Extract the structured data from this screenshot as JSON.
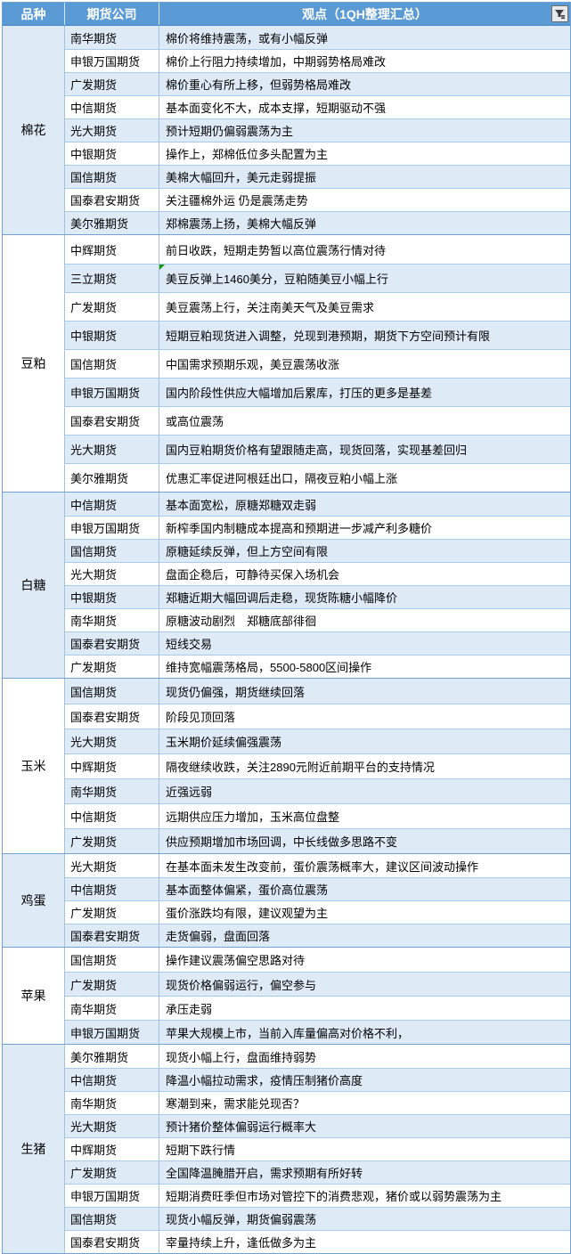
{
  "table": {
    "headers": {
      "variety": "品种",
      "company": "期货公司",
      "viewpoint": "观点（1QH整理汇总）"
    },
    "filter_icon": "autofilter-funnel-icon",
    "colors": {
      "header_bg": "#5B9BD5",
      "band_blue": "#DEEAF6",
      "band_white": "#FFFFFF",
      "grid_line": "#9DC3E6",
      "section_border": "#74A2D0",
      "corner_marker_green": "#0F9D0F"
    },
    "sections": [
      {
        "variety": "棉花",
        "rows": [
          {
            "company": "南华期货",
            "view": "棉价将维持震荡，或有小幅反弹"
          },
          {
            "company": "申银万国期货",
            "view": "棉价上行阻力持续增加，中期弱势格局难改"
          },
          {
            "company": "广发期货",
            "view": "棉价重心有所上移，但弱势格局难改"
          },
          {
            "company": "中信期货",
            "view": "基本面变化不大，成本支撑，短期驱动不强"
          },
          {
            "company": "光大期货",
            "view": "预计短期仍偏弱震荡为主"
          },
          {
            "company": "中银期货",
            "view": "操作上，郑棉低位多头配置为主"
          },
          {
            "company": "国信期货",
            "view": "美棉大幅回升，美元走弱提振"
          },
          {
            "company": "国泰君安期货",
            "view": "关注疆棉外运 仍是震荡走势"
          },
          {
            "company": "美尔雅期货",
            "view": "郑棉震荡上扬，美棉大幅反弹"
          }
        ]
      },
      {
        "variety": "豆粕",
        "rows": [
          {
            "company": "中辉期货",
            "view": "前日收跌，短期走势暂以高位震荡行情对待"
          },
          {
            "company": "三立期货",
            "view": "美豆反弹上1460美分，豆粕随美豆小幅上行",
            "green_corner": true
          },
          {
            "company": "广发期货",
            "view": "美豆震荡上行，关注南美天气及美豆需求"
          },
          {
            "company": "中银期货",
            "view": "短期豆粕现货进入调整，兑现到港预期，期货下方空间预计有限"
          },
          {
            "company": "国信期货",
            "view": "中国需求预期乐观，美豆震荡收涨"
          },
          {
            "company": "申银万国期货",
            "view": "国内阶段性供应大幅增加后累库，打压的更多是基差"
          },
          {
            "company": "国泰君安期货",
            "view": "或高位震荡"
          },
          {
            "company": "光大期货",
            "view": "国内豆粕期货价格有望跟随走高，现货回落，实现基差回归"
          },
          {
            "company": "美尔雅期货",
            "view": "优惠汇率促进阿根廷出口，隔夜豆粕小幅上涨"
          }
        ]
      },
      {
        "variety": "白糖",
        "rows": [
          {
            "company": "中信期货",
            "view": "基本面宽松，原糖郑糖双走弱"
          },
          {
            "company": "申银万国期货",
            "view": "新榨季国内制糖成本提高和预期进一步减产利多糖价"
          },
          {
            "company": "国信期货",
            "view": "原糖延续反弹，但上方空间有限"
          },
          {
            "company": "光大期货",
            "view": "盘面企稳后，可静待买保入场机会"
          },
          {
            "company": "中银期货",
            "view": "郑糖近期大幅回调后走稳，现货陈糖小幅降价"
          },
          {
            "company": "南华期货",
            "view": "原糖波动剧烈　郑糖底部徘徊"
          },
          {
            "company": "国泰君安期货",
            "view": "短线交易"
          },
          {
            "company": "广发期货",
            "view": "维持宽幅震荡格局，5500-5800区间操作"
          }
        ]
      },
      {
        "variety": "玉米",
        "rows": [
          {
            "company": "国信期货",
            "view": "现货仍偏强，期货继续回落"
          },
          {
            "company": "国泰君安期货",
            "view": "阶段见顶回落"
          },
          {
            "company": "光大期货",
            "view": "玉米期价延续偏强震荡"
          },
          {
            "company": "中辉期货",
            "view": "隔夜继续收跌，关注2890元附近前期平台的支持情况"
          },
          {
            "company": "南华期货",
            "view": "近强远弱"
          },
          {
            "company": "中信期货",
            "view": "远期供应压力增加，玉米高位盘整"
          },
          {
            "company": "广发期货",
            "view": "供应预期增加市场回调，中长线做多思路不变"
          }
        ]
      },
      {
        "variety": "鸡蛋",
        "rows": [
          {
            "company": "光大期货",
            "view": "在基本面未发生改变前，蛋价震荡概率大，建议区间波动操作"
          },
          {
            "company": "中信期货",
            "view": "基本面整体偏紧，蛋价高位震荡"
          },
          {
            "company": "广发期货",
            "view": "蛋价涨跌均有限，建议观望为主"
          },
          {
            "company": "国泰君安期货",
            "view": "走货偏弱，盘面回落"
          }
        ]
      },
      {
        "variety": "苹果",
        "rows": [
          {
            "company": "国信期货",
            "view": "操作建议震荡偏空思路对待"
          },
          {
            "company": "广发期货",
            "view": "现货价格偏弱运行，偏空参与"
          },
          {
            "company": "南华期货",
            "view": "承压走弱"
          },
          {
            "company": "申银万国期货",
            "view": "苹果大规模上市，当前入库量偏高对价格不利，"
          }
        ]
      },
      {
        "variety": "生猪",
        "rows": [
          {
            "company": "美尔雅期货",
            "view": "现货小幅上行，盘面维持弱势"
          },
          {
            "company": "中信期货",
            "view": "降温小幅拉动需求，疫情压制猪价高度"
          },
          {
            "company": "南华期货",
            "view": "寒潮到来，需求能兑现否？"
          },
          {
            "company": "光大期货",
            "view": "预计猪价整体偏弱运行概率大"
          },
          {
            "company": "中辉期货",
            "view": "短期下跌行情"
          },
          {
            "company": "广发期货",
            "view": "全国降温腌腊开启，需求预期有所好转"
          },
          {
            "company": "申银万国期货",
            "view": "短期消费旺季但市场对管控下的消费悲观，猪价或以弱势震荡为主"
          },
          {
            "company": "国信期货",
            "view": "现货小幅反弹，期货偏弱震荡"
          },
          {
            "company": "国泰君安期货",
            "view": "宰量持续上升，逢低做多为主"
          }
        ]
      }
    ]
  }
}
